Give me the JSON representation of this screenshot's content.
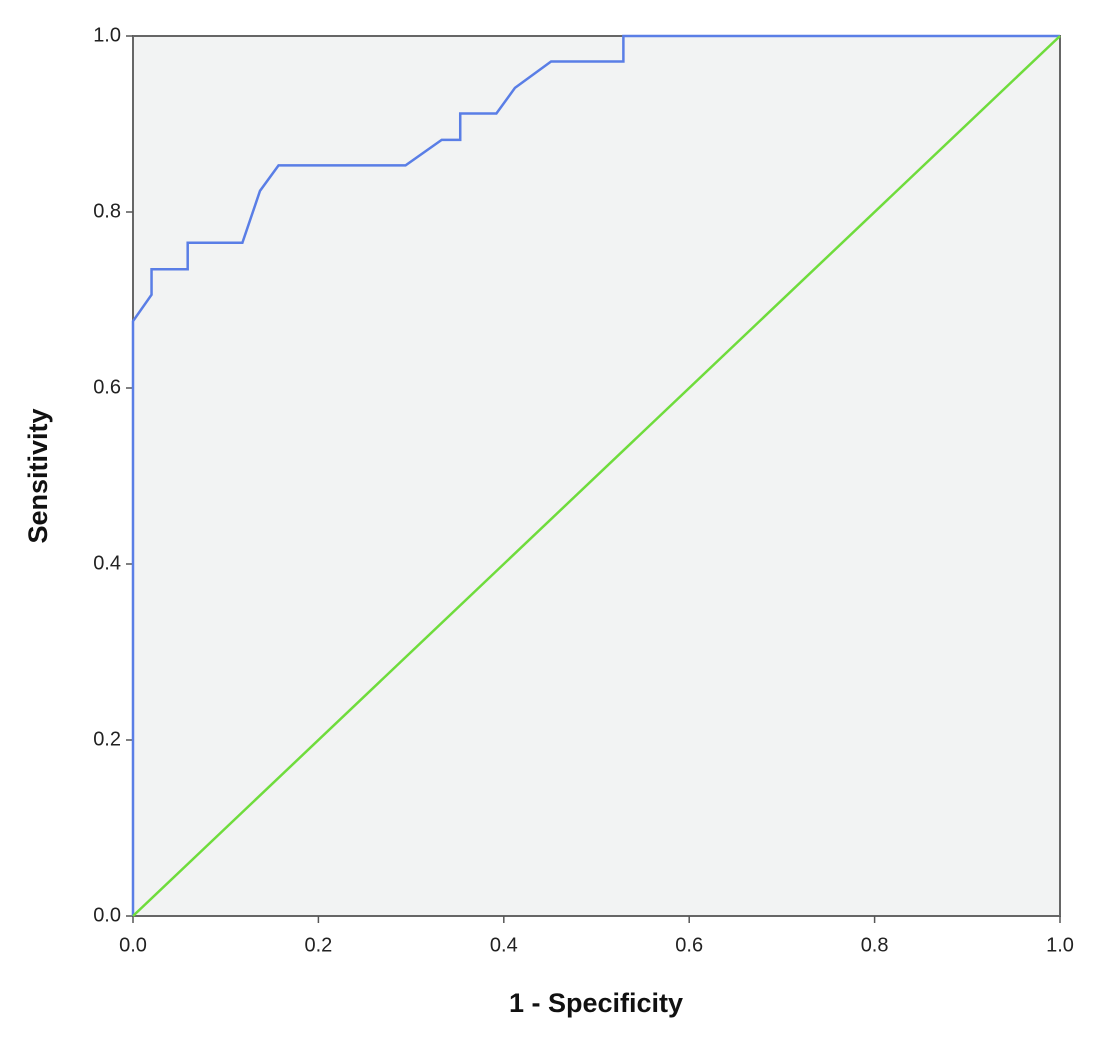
{
  "chart_data": {
    "type": "line",
    "x_label": "1 - Specificity",
    "y_label": "Sensitivity",
    "xlim": [
      0,
      1
    ],
    "ylim": [
      0,
      1
    ],
    "xticks": [
      {
        "value": 0,
        "label": "0.0"
      },
      0.2,
      0.4,
      0.6,
      0.8,
      {
        "value": 1,
        "label": "1.0"
      }
    ],
    "yticks": [
      {
        "value": 0,
        "label": "0.0"
      },
      0.2,
      0.4,
      0.6,
      0.8,
      {
        "value": 1,
        "label": "1.0"
      }
    ],
    "grid": false,
    "background": "#f2f3f3",
    "series": [
      {
        "color": "#5a7ee6",
        "x": [
          0,
          0,
          0.02,
          0.02,
          0.059,
          0.059,
          0.118,
          0.137,
          0.157,
          0.294,
          0.333,
          0.353,
          0.353,
          0.392,
          0.412,
          0.451,
          0.529,
          0.529,
          1
        ],
        "values": [
          0,
          0.676,
          0.706,
          0.735,
          0.735,
          0.765,
          0.765,
          0.824,
          0.853,
          0.853,
          0.882,
          0.882,
          0.912,
          0.912,
          0.941,
          0.971,
          0.971,
          1,
          1
        ]
      },
      {
        "color": "#6fdc3c",
        "x": [
          0,
          1
        ],
        "values": [
          0,
          1
        ]
      }
    ]
  }
}
